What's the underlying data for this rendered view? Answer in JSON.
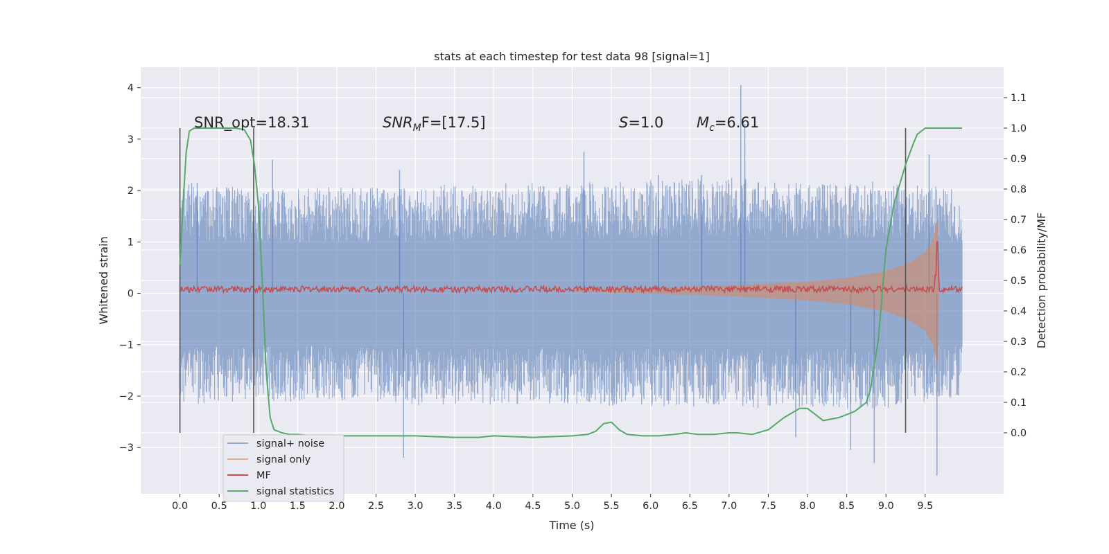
{
  "chart_data": {
    "type": "line",
    "title": "stats at each timestep for test data 98 [signal=1]",
    "xlabel": "Time (s)",
    "ylabel": "Whitened strain",
    "ylabel_right": "Detection probability/MF",
    "xlim": [
      -0.5,
      10.5
    ],
    "ylim": [
      -3.9,
      4.4
    ],
    "ylim_right": [
      -0.2,
      1.2
    ],
    "x_ticks": [
      "0.0",
      "0.5",
      "1.0",
      "1.5",
      "2.0",
      "2.5",
      "3.0",
      "3.5",
      "4.0",
      "4.5",
      "5.0",
      "5.5",
      "6.0",
      "6.5",
      "7.0",
      "7.5",
      "8.0",
      "8.5",
      "9.0",
      "9.5"
    ],
    "y_ticks": [
      "4",
      "3",
      "2",
      "1",
      "0",
      "−1",
      "−2",
      "−3"
    ],
    "y_ticks_right": [
      "1.1",
      "1.0",
      "0.9",
      "0.8",
      "0.7",
      "0.6",
      "0.5",
      "0.4",
      "0.3",
      "0.2",
      "0.1",
      "0.0"
    ],
    "grid": true,
    "legend_position": "lower-left",
    "annotations": {
      "snr_opt": "SNR_opt=18.31",
      "snr_mf_base": "SNR",
      "snr_mf_sub": "M",
      "snr_mf_rest": "F=[17.5]",
      "s_base": "S",
      "s_rest": "=1.0",
      "mc_base": "M",
      "mc_sub": "c",
      "mc_rest": "=6.61"
    },
    "vertical_markers": [
      0.0,
      0.94,
      9.25
    ],
    "series": [
      {
        "name": "signal+ noise",
        "color": "#4c72b0",
        "axis": "left",
        "description_values": "dense noisy strain, envelope approx ±1.9, extremes up to 4.0 near t=7.15 and -3.55 near t=9.65",
        "t_range": [
          0.0,
          9.97
        ],
        "envelope_upper": [
          [
            0.0,
            1.5
          ],
          [
            1.0,
            1.4
          ],
          [
            3.0,
            1.45
          ],
          [
            5.0,
            1.5
          ],
          [
            7.0,
            1.55
          ],
          [
            9.0,
            1.5
          ],
          [
            9.97,
            1.4
          ]
        ],
        "envelope_lower": [
          [
            0.0,
            -1.5
          ],
          [
            1.0,
            -1.45
          ],
          [
            3.0,
            -1.5
          ],
          [
            5.0,
            -1.5
          ],
          [
            7.0,
            -1.55
          ],
          [
            9.0,
            -1.55
          ],
          [
            9.97,
            -1.4
          ]
        ],
        "spikes": [
          [
            0.22,
            2.15
          ],
          [
            1.18,
            2.6
          ],
          [
            2.85,
            -3.2
          ],
          [
            2.8,
            2.4
          ],
          [
            5.15,
            2.75
          ],
          [
            6.1,
            2.3
          ],
          [
            6.65,
            2.3
          ],
          [
            7.15,
            4.05
          ],
          [
            7.2,
            3.3
          ],
          [
            7.85,
            -2.8
          ],
          [
            8.55,
            -3.05
          ],
          [
            8.85,
            -3.3
          ],
          [
            9.65,
            -3.55
          ],
          [
            9.55,
            2.7
          ]
        ]
      },
      {
        "name": "signal only",
        "color": "#dd8452",
        "axis": "left",
        "chirp_envelope": [
          [
            5.0,
            0.02
          ],
          [
            6.0,
            0.05
          ],
          [
            7.0,
            0.1
          ],
          [
            8.0,
            0.18
          ],
          [
            8.5,
            0.25
          ],
          [
            9.0,
            0.38
          ],
          [
            9.3,
            0.55
          ],
          [
            9.5,
            0.75
          ],
          [
            9.6,
            1.0
          ],
          [
            9.66,
            1.4
          ],
          [
            9.68,
            0.0
          ]
        ]
      },
      {
        "name": "MF",
        "color": "#c44e52",
        "axis": "left",
        "baseline": 0.08,
        "noise_amplitude": 0.06,
        "spike": [
          9.65,
          1.0
        ]
      },
      {
        "name": "signal statistics",
        "color": "#55a868",
        "axis": "right",
        "x": [
          0.0,
          0.04,
          0.08,
          0.12,
          0.18,
          0.25,
          0.35,
          0.5,
          0.7,
          0.82,
          0.9,
          0.95,
          1.0,
          1.05,
          1.1,
          1.15,
          1.2,
          1.3,
          1.4,
          1.5,
          1.7,
          2.0,
          2.5,
          3.0,
          3.5,
          3.8,
          4.0,
          4.5,
          5.0,
          5.2,
          5.3,
          5.4,
          5.5,
          5.6,
          5.7,
          5.9,
          6.1,
          6.3,
          6.45,
          6.6,
          6.8,
          7.0,
          7.1,
          7.3,
          7.5,
          7.7,
          7.9,
          8.0,
          8.1,
          8.2,
          8.4,
          8.6,
          8.75,
          8.8,
          8.9,
          9.0,
          9.1,
          9.25,
          9.35,
          9.4,
          9.5,
          9.6,
          9.8,
          9.97
        ],
        "y": [
          0.55,
          0.75,
          0.92,
          0.99,
          1.0,
          1.0,
          1.0,
          1.0,
          1.0,
          0.995,
          0.96,
          0.88,
          0.75,
          0.5,
          0.2,
          0.05,
          0.01,
          0.0,
          -0.005,
          -0.005,
          -0.01,
          -0.01,
          -0.01,
          -0.01,
          -0.015,
          -0.015,
          -0.01,
          -0.015,
          -0.01,
          -0.005,
          0.005,
          0.03,
          0.035,
          0.01,
          -0.005,
          -0.01,
          -0.01,
          -0.005,
          0.0,
          -0.005,
          -0.005,
          0.0,
          0.0,
          -0.005,
          0.01,
          0.05,
          0.08,
          0.08,
          0.06,
          0.04,
          0.05,
          0.07,
          0.1,
          0.14,
          0.3,
          0.6,
          0.75,
          0.88,
          0.95,
          0.98,
          1.0,
          1.0,
          1.0,
          1.0
        ]
      }
    ]
  }
}
